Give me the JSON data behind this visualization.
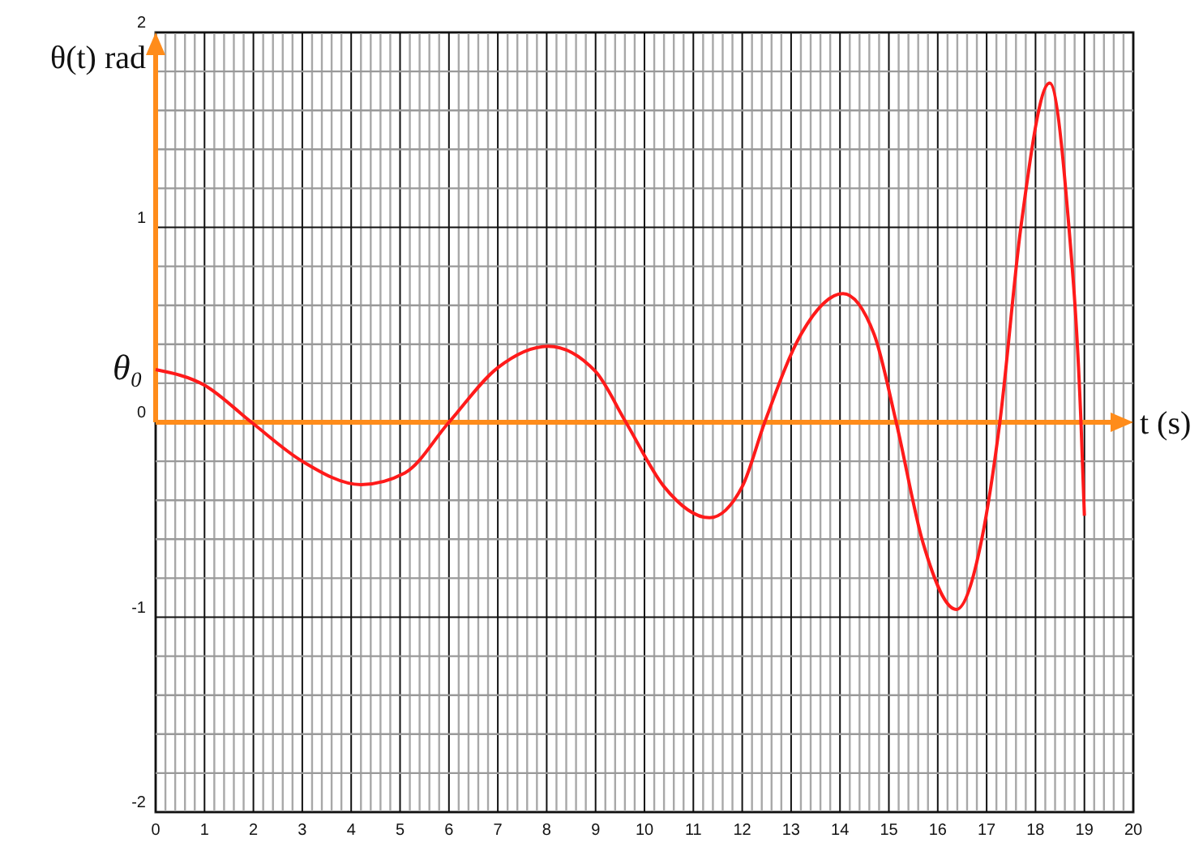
{
  "chart_data": {
    "type": "line",
    "xlabel": "t (s)",
    "ylabel": "θ(t) rad",
    "xlim": [
      0,
      20
    ],
    "ylim": [
      -2,
      2
    ],
    "xticks": [
      0,
      1,
      2,
      3,
      4,
      5,
      6,
      7,
      8,
      9,
      10,
      11,
      12,
      13,
      14,
      15,
      16,
      17,
      18,
      19,
      20
    ],
    "yticks": [
      -2,
      -1,
      0,
      1,
      2
    ],
    "grid": true,
    "ref_lines": [
      {
        "axis": "y",
        "value": 0,
        "color": "#ff8c1a"
      }
    ],
    "annotations": [
      {
        "text": "θ₀",
        "x": 0,
        "y": 0.27
      }
    ],
    "series": [
      {
        "color": "#ff1a1a",
        "x": [
          0,
          1,
          1.96,
          3,
          4.2,
          5.1,
          6,
          7,
          8.03,
          9,
          9.62,
          10.4,
          11.33,
          12,
          12.46,
          13.2,
          14.06,
          14.7,
          15.15,
          15.7,
          16.38,
          16.9,
          17.27,
          17.7,
          18.29,
          18.65,
          18.93,
          19
        ],
        "values": [
          0.27,
          0.19,
          0,
          -0.2,
          -0.32,
          -0.26,
          0,
          0.28,
          0.39,
          0.26,
          0,
          -0.33,
          -0.49,
          -0.33,
          0,
          0.45,
          0.66,
          0.45,
          0,
          -0.62,
          -0.96,
          -0.6,
          0,
          1.0,
          1.74,
          1.1,
          0,
          -0.48
        ]
      }
    ]
  }
}
